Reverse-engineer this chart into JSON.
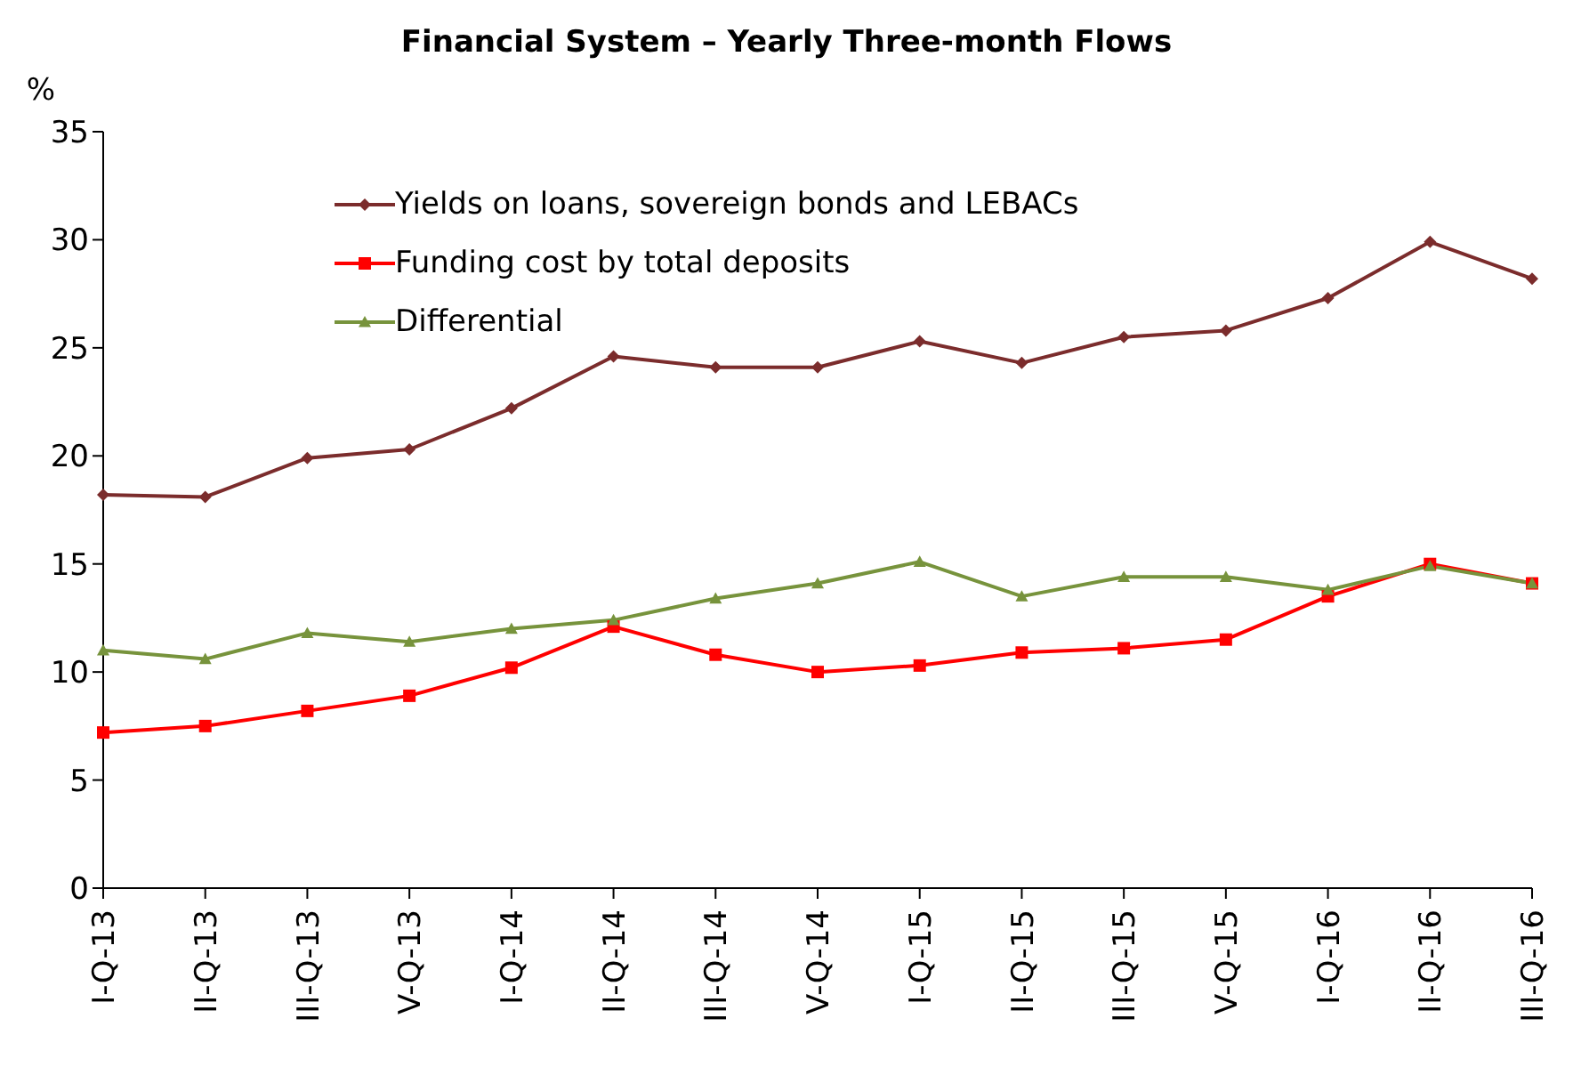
{
  "chart_data": {
    "type": "line",
    "title": "Financial System – Yearly Three-month Flows",
    "ylabel": "%",
    "categories": [
      "I-Q-13",
      "II-Q-13",
      "III-Q-13",
      "V-Q-13",
      "I-Q-14",
      "II-Q-14",
      "III-Q-14",
      "V-Q-14",
      "I-Q-15",
      "II-Q-15",
      "III-Q-15",
      "V-Q-15",
      "I-Q-16",
      "II-Q-16",
      "III-Q-16"
    ],
    "series": [
      {
        "name": "Yields on loans, sovereign bonds and LEBACs",
        "color": "#7b2c2c",
        "marker": "diamond",
        "values": [
          18.2,
          18.1,
          19.9,
          20.3,
          22.2,
          24.6,
          24.1,
          24.1,
          25.3,
          24.3,
          25.5,
          25.8,
          27.3,
          29.9,
          28.2
        ]
      },
      {
        "name": "Funding cost by total deposits",
        "color": "#ff0000",
        "marker": "square",
        "values": [
          7.2,
          7.5,
          8.2,
          8.9,
          10.2,
          12.1,
          10.8,
          10.0,
          10.3,
          10.9,
          11.1,
          11.5,
          13.5,
          15.0,
          14.1
        ]
      },
      {
        "name": "Differential",
        "color": "#77933c",
        "marker": "triangle",
        "values": [
          11.0,
          10.6,
          11.8,
          11.4,
          12.0,
          12.4,
          13.4,
          14.1,
          15.1,
          13.5,
          14.4,
          14.4,
          13.8,
          14.9,
          14.1
        ]
      }
    ],
    "ylim": [
      0,
      35
    ],
    "yticks": [
      0,
      5,
      10,
      15,
      20,
      25,
      30,
      35
    ],
    "grid": false,
    "legend": "top left",
    "line_style": "solid"
  }
}
